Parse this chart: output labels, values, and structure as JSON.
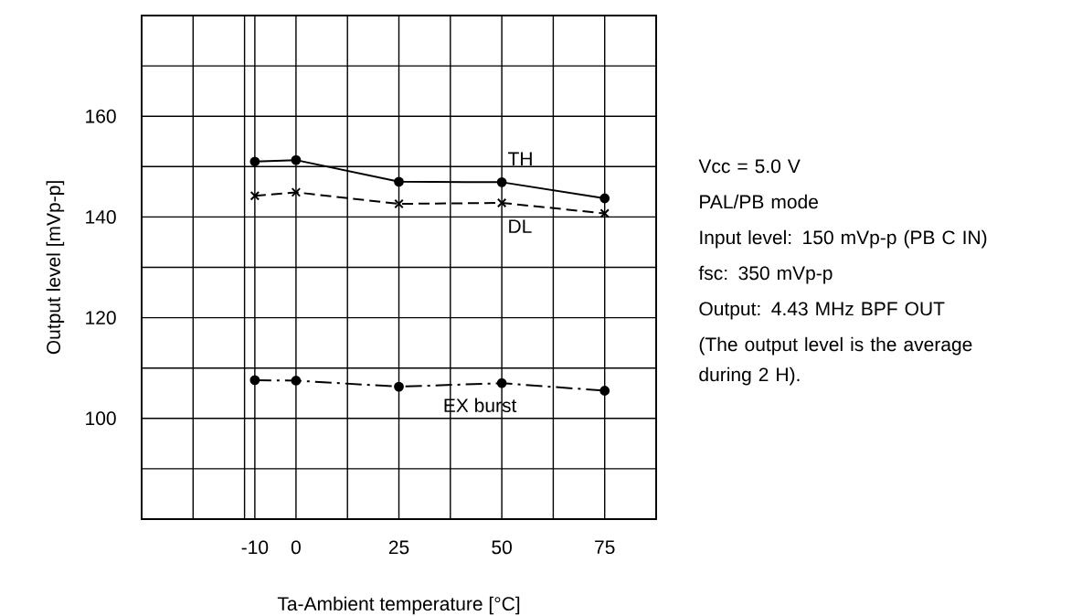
{
  "chart_data": {
    "type": "line",
    "xlabel": "Ta-Ambient temperature [°C]",
    "ylabel": "Output level [mVp-p]",
    "x": [
      -10,
      0,
      25,
      50,
      75
    ],
    "series": [
      {
        "name": "TH",
        "color": "#000000",
        "marker": "circle",
        "line_style": "solid",
        "values": [
          151,
          151.3,
          147,
          146.9,
          143.7
        ]
      },
      {
        "name": "DL",
        "color": "#000000",
        "marker": "cross",
        "line_style": "dashed",
        "values": [
          144.2,
          144.9,
          142.6,
          142.8,
          140.7
        ]
      },
      {
        "name": "EX burst",
        "color": "#000000",
        "marker": "circle",
        "line_style": "dashdot",
        "values": [
          107.6,
          107.5,
          106.3,
          107,
          105.5
        ]
      }
    ],
    "xlim": [
      -37.5,
      87.5
    ],
    "ylim": [
      80,
      180
    ],
    "xticks": [
      {
        "value": -37.5,
        "label": null
      },
      {
        "value": -25,
        "label": null
      },
      -10,
      {
        "value": -12.5,
        "label": null
      },
      0,
      {
        "value": 12.5,
        "label": null
      },
      25,
      {
        "value": 37.5,
        "label": null
      },
      50,
      {
        "value": 62.5,
        "label": null
      },
      75,
      {
        "value": 87.5,
        "label": null
      }
    ],
    "yticks": [
      {
        "value": 80,
        "label": null
      },
      {
        "value": 90,
        "label": null
      },
      100,
      {
        "value": 110,
        "label": null
      },
      120,
      {
        "value": 130,
        "label": null
      },
      140,
      {
        "value": 150,
        "label": null
      },
      160,
      {
        "value": 170,
        "label": null
      },
      {
        "value": 180,
        "label": null
      }
    ],
    "grid": true,
    "annotations": [
      "Vcc = 5.0 V",
      "PAL/PB mode",
      "Input level: 150 mVp-p (PB C IN)",
      "fsc: 350 mVp-p",
      "Output: 4.43 MHz BPF OUT",
      "(The output level is the average during 2 H)."
    ]
  }
}
